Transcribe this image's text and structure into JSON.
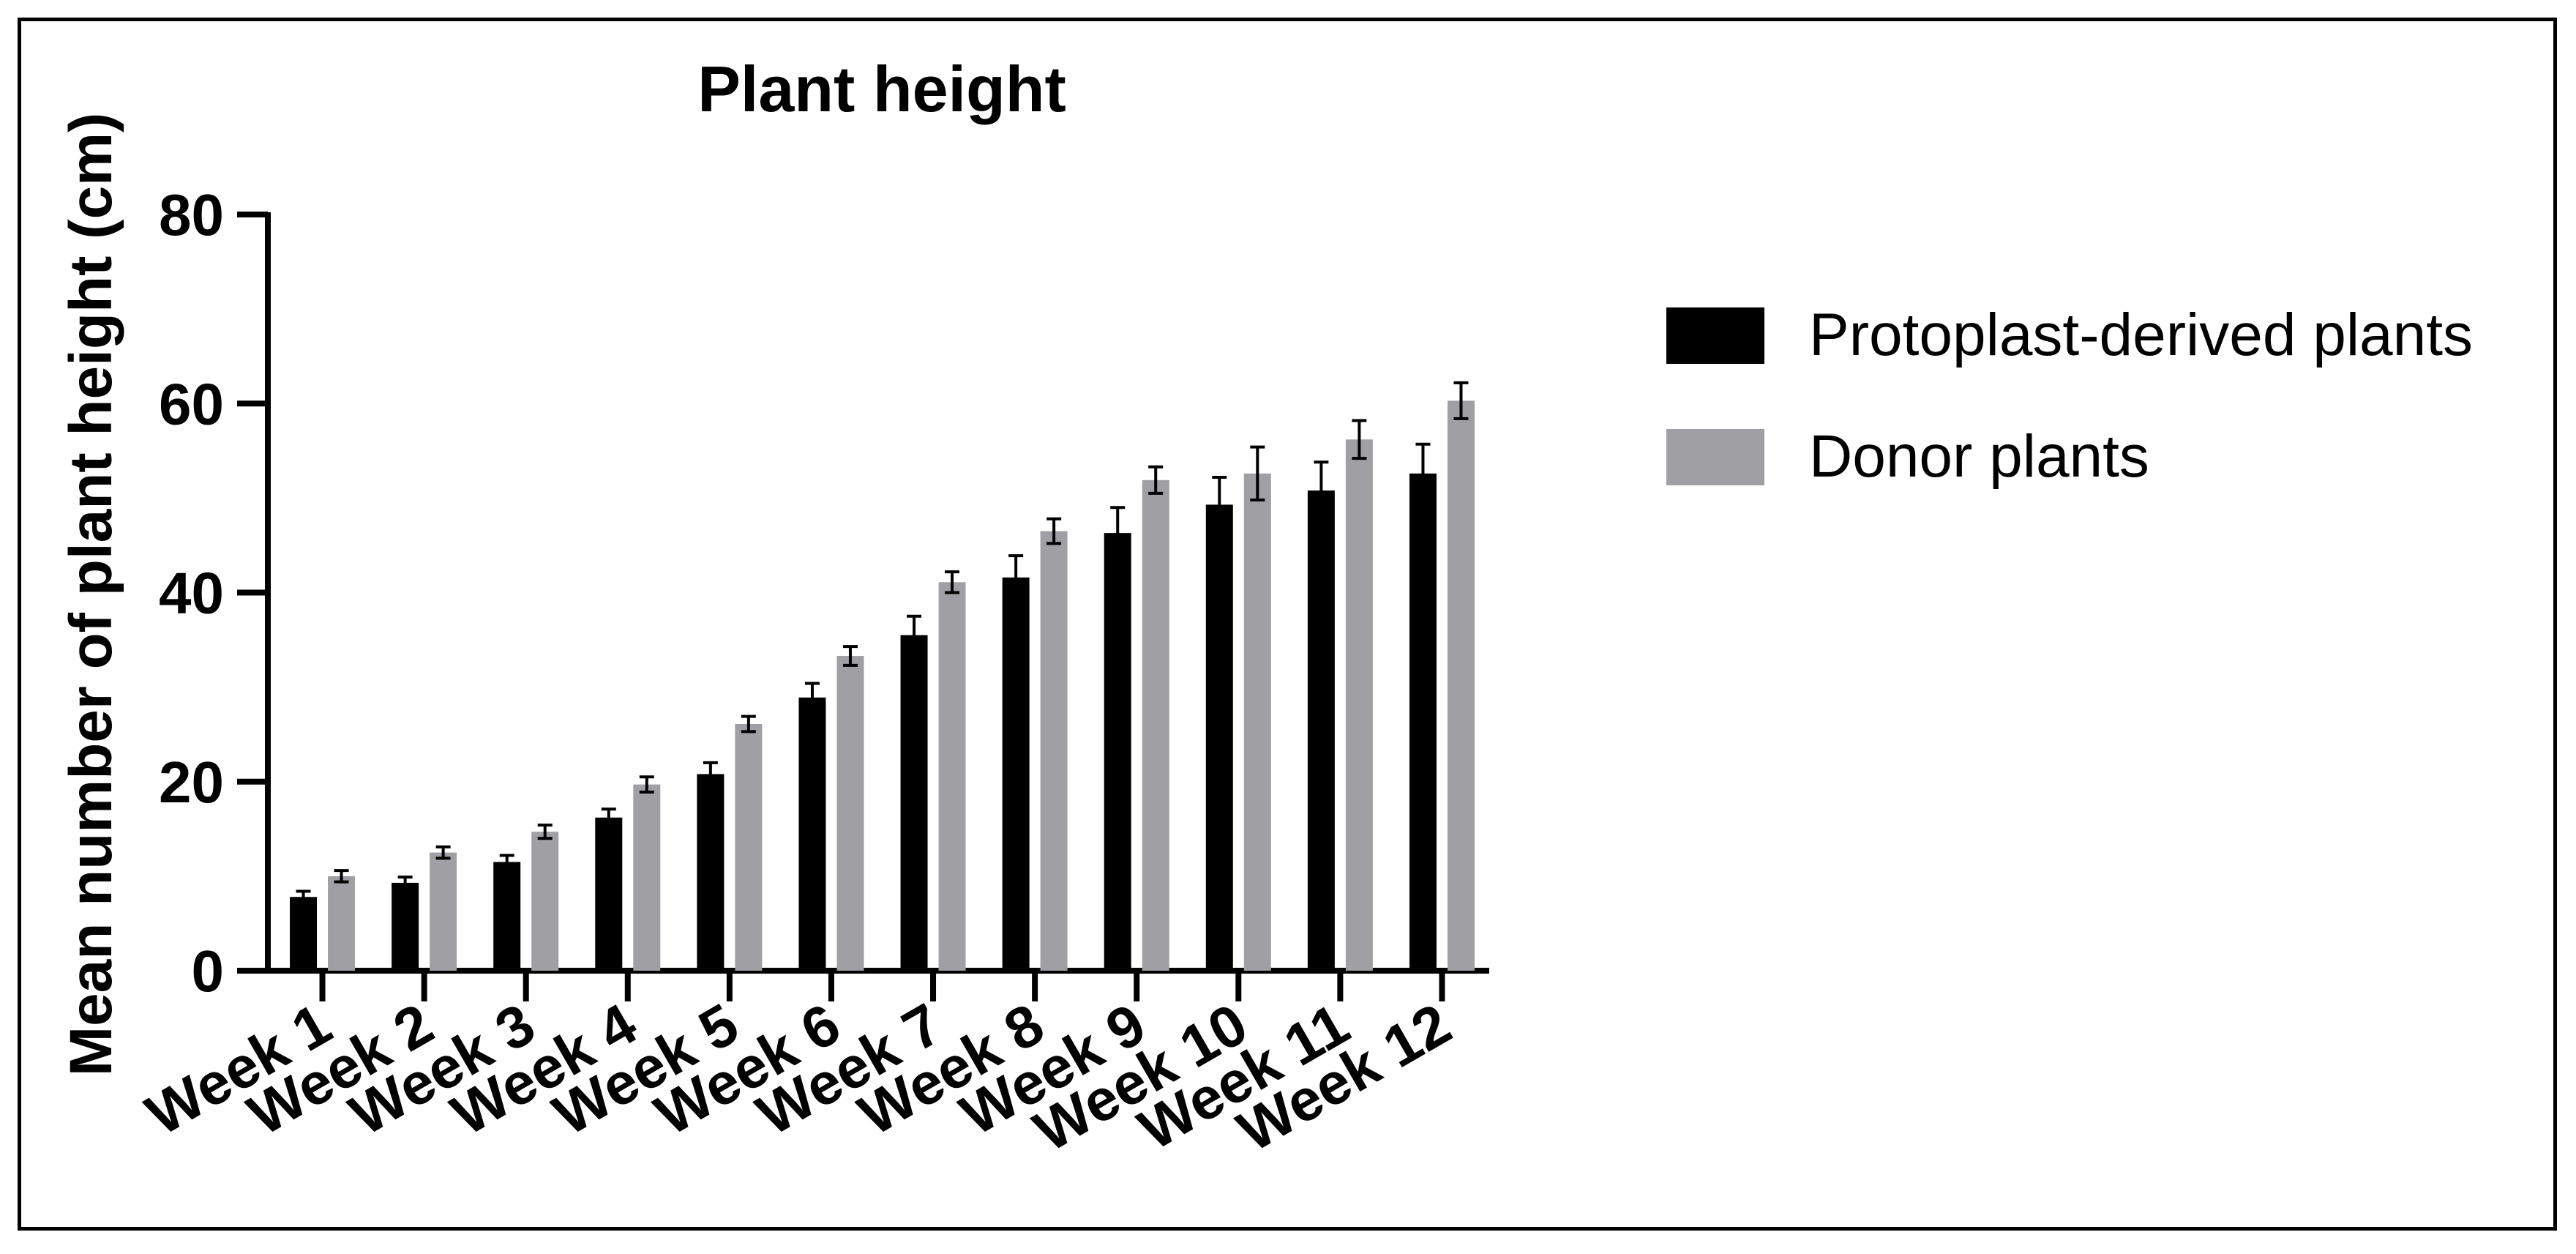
{
  "chart_data": {
    "type": "bar",
    "title": "Plant height",
    "xlabel": "",
    "ylabel": "Mean number of plant height (cm)",
    "ylim": [
      0,
      80
    ],
    "yticks": [
      "0",
      "20",
      "40",
      "60",
      "80"
    ],
    "categories": [
      "Week 1",
      "Week 2",
      "Week 3",
      "Week 4",
      "Week 5",
      "Week 6",
      "Week 7",
      "Week 8",
      "Week 9",
      "Week 10",
      "Week 11",
      "Week 12"
    ],
    "series": [
      {
        "name": "Protoplast-derived plants",
        "color": "#000000",
        "values": [
          7.8,
          9.3,
          11.5,
          16.2,
          20.8,
          28.9,
          35.5,
          41.6,
          46.3,
          49.3,
          50.8,
          52.6
        ],
        "errors": [
          0.6,
          0.6,
          0.7,
          0.9,
          1.2,
          1.5,
          2.0,
          2.3,
          2.7,
          2.9,
          3.0,
          3.1
        ]
      },
      {
        "name": "Donor plants",
        "color": "#a0a0a4",
        "values": [
          10.0,
          12.5,
          14.7,
          19.7,
          26.1,
          33.3,
          41.1,
          46.5,
          51.9,
          52.6,
          56.2,
          60.3
        ],
        "errors": [
          0.6,
          0.6,
          0.7,
          0.8,
          0.8,
          1.0,
          1.1,
          1.3,
          1.4,
          2.8,
          2.0,
          1.9
        ]
      }
    ],
    "legend_position": "right"
  }
}
